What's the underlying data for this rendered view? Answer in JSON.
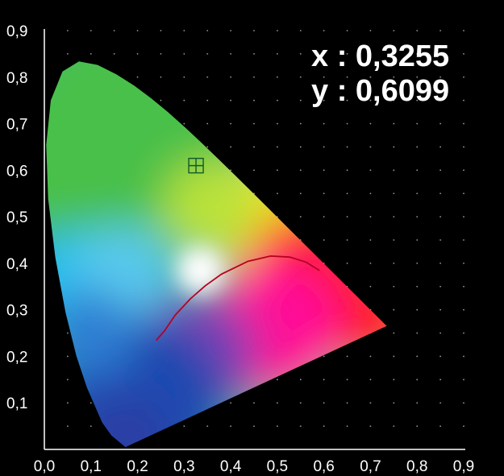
{
  "chart_data": {
    "type": "scatter",
    "title": "",
    "xlabel": "",
    "ylabel": "",
    "xlim": [
      0,
      0.9
    ],
    "ylim": [
      0,
      0.9
    ],
    "x_ticks": [
      "0,0",
      "0,1",
      "0,2",
      "0,3",
      "0,4",
      "0,5",
      "0,6",
      "0,7",
      "0,8",
      "0,9"
    ],
    "y_ticks": [
      "0,1",
      "0,2",
      "0,3",
      "0,4",
      "0,5",
      "0,6",
      "0,7",
      "0,8",
      "0,9"
    ],
    "grid": "dotted",
    "readout": {
      "x_label": "x : 0,3255",
      "y_label": "y : 0,6099"
    },
    "selected_point": {
      "x": 0.3255,
      "y": 0.6099
    },
    "spectral_locus": [
      [
        0.1741,
        0.005
      ],
      [
        0.144,
        0.0297
      ],
      [
        0.1241,
        0.0578
      ],
      [
        0.0913,
        0.1327
      ],
      [
        0.0687,
        0.2007
      ],
      [
        0.0454,
        0.295
      ],
      [
        0.0235,
        0.4127
      ],
      [
        0.0082,
        0.5384
      ],
      [
        0.0039,
        0.6548
      ],
      [
        0.0139,
        0.7502
      ],
      [
        0.0389,
        0.812
      ],
      [
        0.0743,
        0.8338
      ],
      [
        0.1142,
        0.8262
      ],
      [
        0.1547,
        0.8059
      ],
      [
        0.1929,
        0.7816
      ],
      [
        0.2296,
        0.7543
      ],
      [
        0.2658,
        0.7243
      ],
      [
        0.3016,
        0.6923
      ],
      [
        0.3373,
        0.6589
      ],
      [
        0.3731,
        0.6245
      ],
      [
        0.4087,
        0.5896
      ],
      [
        0.4441,
        0.5547
      ],
      [
        0.4788,
        0.5202
      ],
      [
        0.5125,
        0.4866
      ],
      [
        0.5448,
        0.4544
      ],
      [
        0.5752,
        0.4242
      ],
      [
        0.6029,
        0.3965
      ],
      [
        0.627,
        0.3725
      ],
      [
        0.6482,
        0.3514
      ],
      [
        0.6658,
        0.334
      ],
      [
        0.6915,
        0.3083
      ],
      [
        0.7079,
        0.292
      ],
      [
        0.7347,
        0.2653
      ]
    ],
    "planckian_locus": [
      [
        0.2399,
        0.2341
      ],
      [
        0.258,
        0.255
      ],
      [
        0.2806,
        0.2883
      ],
      [
        0.3135,
        0.3237
      ],
      [
        0.3451,
        0.3516
      ],
      [
        0.3805,
        0.3768
      ],
      [
        0.4369,
        0.4041
      ],
      [
        0.4855,
        0.4155
      ],
      [
        0.5267,
        0.4133
      ],
      [
        0.5614,
        0.4026
      ],
      [
        0.5903,
        0.3847
      ]
    ],
    "colors": {
      "background": "#000000",
      "axis": "#ffffff",
      "grid_dot": "#9a9a9a",
      "planckian": "#b8001f",
      "marker": "#0f5a2a",
      "white": "#ffffff",
      "green": "#49c048",
      "yellow": "#f0e81a",
      "red": "#ff1d25",
      "magenta": "#ff0f96",
      "purple": "#7b3fb4",
      "blue": "#1e4ab0",
      "cyan": "#22bef0",
      "teal": "#27b59b"
    }
  }
}
